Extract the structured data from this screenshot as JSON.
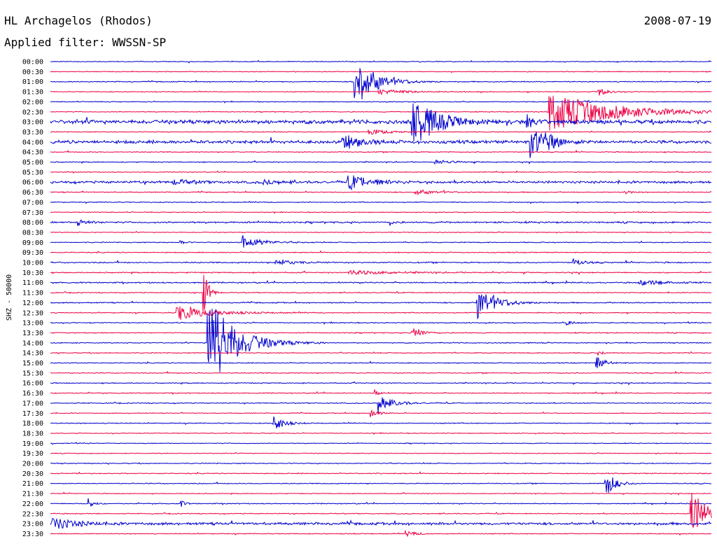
{
  "header": {
    "station": "HL Archagelos (Rhodos)",
    "filter": "Applied filter: WWSSN-SP",
    "date": "2008-07-19"
  },
  "colors": {
    "even": "#0000cc",
    "odd": "#ee0044"
  },
  "chart_data": {
    "type": "line",
    "title": "HL Archagelos (Rhodos)",
    "subtitle": "Applied filter: WWSSN-SP",
    "ylabel": "SHZ - 50000",
    "xlabel": "",
    "grid": false,
    "row_labels": [
      "00:00",
      "00:30",
      "01:00",
      "01:30",
      "02:00",
      "02:30",
      "03:00",
      "03:30",
      "04:00",
      "04:30",
      "05:00",
      "05:30",
      "06:00",
      "06:30",
      "07:00",
      "07:30",
      "08:00",
      "08:30",
      "09:00",
      "09:30",
      "10:00",
      "10:30",
      "11:00",
      "11:30",
      "12:00",
      "12:30",
      "13:00",
      "13:30",
      "14:00",
      "14:30",
      "15:00",
      "15:30",
      "16:00",
      "16:30",
      "17:00",
      "17:30",
      "18:00",
      "18:30",
      "19:00",
      "19:30",
      "20:00",
      "20:30",
      "21:00",
      "21:30",
      "22:00",
      "22:30",
      "23:00",
      "23:30"
    ],
    "series": [
      {
        "color": "#0000cc",
        "values": [
          0.5,
          0.5,
          0.6,
          0.5,
          0.5,
          0.5,
          2.5,
          0.5,
          2.0,
          0.6,
          0.6,
          0.5,
          1.5,
          0.6,
          0.6,
          0.5,
          1.0,
          0.5,
          0.6,
          0.6,
          0.8,
          0.7,
          0.8,
          0.6,
          0.7,
          0.6,
          0.6,
          0.6,
          0.6,
          0.6,
          0.6,
          0.6,
          0.6,
          0.6,
          0.6,
          0.5,
          0.6,
          0.5,
          0.5,
          0.5,
          0.6,
          0.6,
          0.6,
          0.5,
          0.6,
          0.6,
          1.6,
          0.6
        ]
      }
    ],
    "events": [
      {
        "row": "01:00",
        "t": 0.459,
        "amp": 40,
        "dur": 0.045
      },
      {
        "row": "01:30",
        "t": 0.495,
        "amp": 4,
        "dur": 0.06
      },
      {
        "row": "02:00",
        "t": 0.808,
        "amp": 2,
        "dur": 0.01
      },
      {
        "row": "01:30",
        "t": 0.828,
        "amp": 7,
        "dur": 0.02
      },
      {
        "row": "02:30",
        "t": 0.753,
        "amp": 30,
        "dur": 0.14
      },
      {
        "row": "03:00",
        "t": 0.546,
        "amp": 42,
        "dur": 0.05
      },
      {
        "row": "03:00",
        "t": 0.72,
        "amp": 8,
        "dur": 0.02
      },
      {
        "row": "03:30",
        "t": 0.48,
        "amp": 4,
        "dur": 0.05
      },
      {
        "row": "04:00",
        "t": 0.44,
        "amp": 12,
        "dur": 0.04
      },
      {
        "row": "04:00",
        "t": 0.725,
        "amp": 25,
        "dur": 0.03
      },
      {
        "row": "04:00",
        "t": 0.745,
        "amp": 10,
        "dur": 0.03
      },
      {
        "row": "05:00",
        "t": 0.58,
        "amp": 3,
        "dur": 0.04
      },
      {
        "row": "06:00",
        "t": 0.185,
        "amp": 4,
        "dur": 0.04
      },
      {
        "row": "06:00",
        "t": 0.32,
        "amp": 4,
        "dur": 0.03
      },
      {
        "row": "06:00",
        "t": 0.45,
        "amp": 11,
        "dur": 0.05
      },
      {
        "row": "06:30",
        "t": 0.55,
        "amp": 4,
        "dur": 0.05
      },
      {
        "row": "06:30",
        "t": 0.868,
        "amp": 6,
        "dur": 0.01
      },
      {
        "row": "08:00",
        "t": 0.04,
        "amp": 6,
        "dur": 0.02
      },
      {
        "row": "08:00",
        "t": 0.512,
        "amp": 5,
        "dur": 0.01
      },
      {
        "row": "09:00",
        "t": 0.29,
        "amp": 10,
        "dur": 0.04
      },
      {
        "row": "09:00",
        "t": 0.195,
        "amp": 4,
        "dur": 0.01
      },
      {
        "row": "10:00",
        "t": 0.34,
        "amp": 5,
        "dur": 0.04
      },
      {
        "row": "10:00",
        "t": 0.79,
        "amp": 6,
        "dur": 0.02
      },
      {
        "row": "10:30",
        "t": 0.45,
        "amp": 3,
        "dur": 0.1
      },
      {
        "row": "11:00",
        "t": 0.89,
        "amp": 4,
        "dur": 0.06
      },
      {
        "row": "11:30",
        "t": 0.23,
        "amp": 50,
        "dur": 0.01
      },
      {
        "row": "12:00",
        "t": 0.645,
        "amp": 24,
        "dur": 0.04
      },
      {
        "row": "12:30",
        "t": 0.19,
        "amp": 12,
        "dur": 0.07
      },
      {
        "row": "13:00",
        "t": 0.78,
        "amp": 3,
        "dur": 0.02
      },
      {
        "row": "13:30",
        "t": 0.546,
        "amp": 12,
        "dur": 0.02
      },
      {
        "row": "14:00",
        "t": 0.237,
        "amp": 70,
        "dur": 0.06
      },
      {
        "row": "14:30",
        "t": 0.828,
        "amp": 4,
        "dur": 0.01
      },
      {
        "row": "15:00",
        "t": 0.825,
        "amp": 10,
        "dur": 0.02
      },
      {
        "row": "16:30",
        "t": 0.49,
        "amp": 5,
        "dur": 0.01
      },
      {
        "row": "17:00",
        "t": 0.495,
        "amp": 14,
        "dur": 0.03
      },
      {
        "row": "17:30",
        "t": 0.484,
        "amp": 7,
        "dur": 0.015
      },
      {
        "row": "18:00",
        "t": 0.336,
        "amp": 16,
        "dur": 0.02
      },
      {
        "row": "21:00",
        "t": 0.838,
        "amp": 24,
        "dur": 0.02
      },
      {
        "row": "22:00",
        "t": 0.057,
        "amp": 8,
        "dur": 0.01
      },
      {
        "row": "22:00",
        "t": 0.197,
        "amp": 5,
        "dur": 0.01
      },
      {
        "row": "22:30",
        "t": 0.968,
        "amp": 38,
        "dur": 0.035
      },
      {
        "row": "23:00",
        "t": 0.002,
        "amp": 9,
        "dur": 0.05
      },
      {
        "row": "23:30",
        "t": 0.537,
        "amp": 5,
        "dur": 0.02
      }
    ]
  }
}
